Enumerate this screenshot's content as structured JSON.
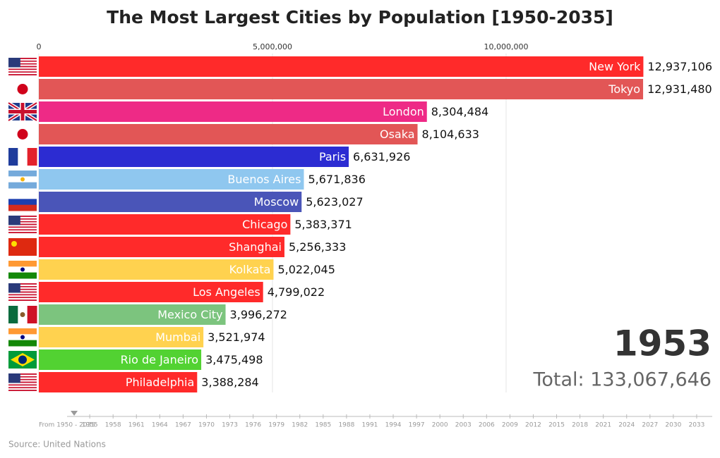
{
  "chart_data": {
    "type": "bar",
    "orientation": "horizontal",
    "title": "The Most Largest Cities by Population [1950-2035]",
    "categories": [
      "New York",
      "Tokyo",
      "London",
      "Osaka",
      "Paris",
      "Buenos Aires",
      "Moscow",
      "Chicago",
      "Shanghai",
      "Kolkata",
      "Los Angeles",
      "Mexico City",
      "Mumbai",
      "Rio de Janeiro",
      "Philadelphia"
    ],
    "values": [
      12937106,
      12931480,
      8304484,
      8104633,
      6631926,
      5671836,
      5623027,
      5383371,
      5256333,
      5022045,
      4799022,
      3996272,
      3521974,
      3475498,
      3388284
    ],
    "value_labels": [
      "12,937,106",
      "12,931,480",
      "8,304,484",
      "8,104,633",
      "6,631,926",
      "5,671,836",
      "5,623,027",
      "5,383,371",
      "5,256,333",
      "5,022,045",
      "4,799,022",
      "3,996,272",
      "3,521,974",
      "3,475,498",
      "3,388,284"
    ],
    "colors": [
      "#ff2a2a",
      "#e25656",
      "#ee2a86",
      "#e25656",
      "#2c2cd2",
      "#8fc7ef",
      "#4a55b8",
      "#ff2a2a",
      "#ff2a2a",
      "#ffd24f",
      "#ff2a2a",
      "#7cc47e",
      "#ffd24f",
      "#52d232",
      "#ff2a2a"
    ],
    "xlim": [
      0,
      14000000
    ],
    "xticks": [
      0,
      {
        "value": 5000000,
        "label": "5,000,000"
      },
      {
        "value": 10000000,
        "label": "10,000,000"
      }
    ],
    "grid": true,
    "year": 1953,
    "total": {
      "value": 133067646,
      "label": "Total: 133,067,646"
    },
    "timeline": {
      "label": "From 1950 - 2035",
      "xlim": [
        1950,
        2035
      ],
      "ticks": [
        1955,
        1958,
        1961,
        1964,
        1967,
        1970,
        1973,
        1976,
        1979,
        1982,
        1985,
        1988,
        1991,
        1994,
        1997,
        2000,
        2003,
        2006,
        2009,
        2012,
        2015,
        2018,
        2021,
        2024,
        2027,
        2030,
        2033
      ]
    },
    "source": "Source: United Nations"
  }
}
